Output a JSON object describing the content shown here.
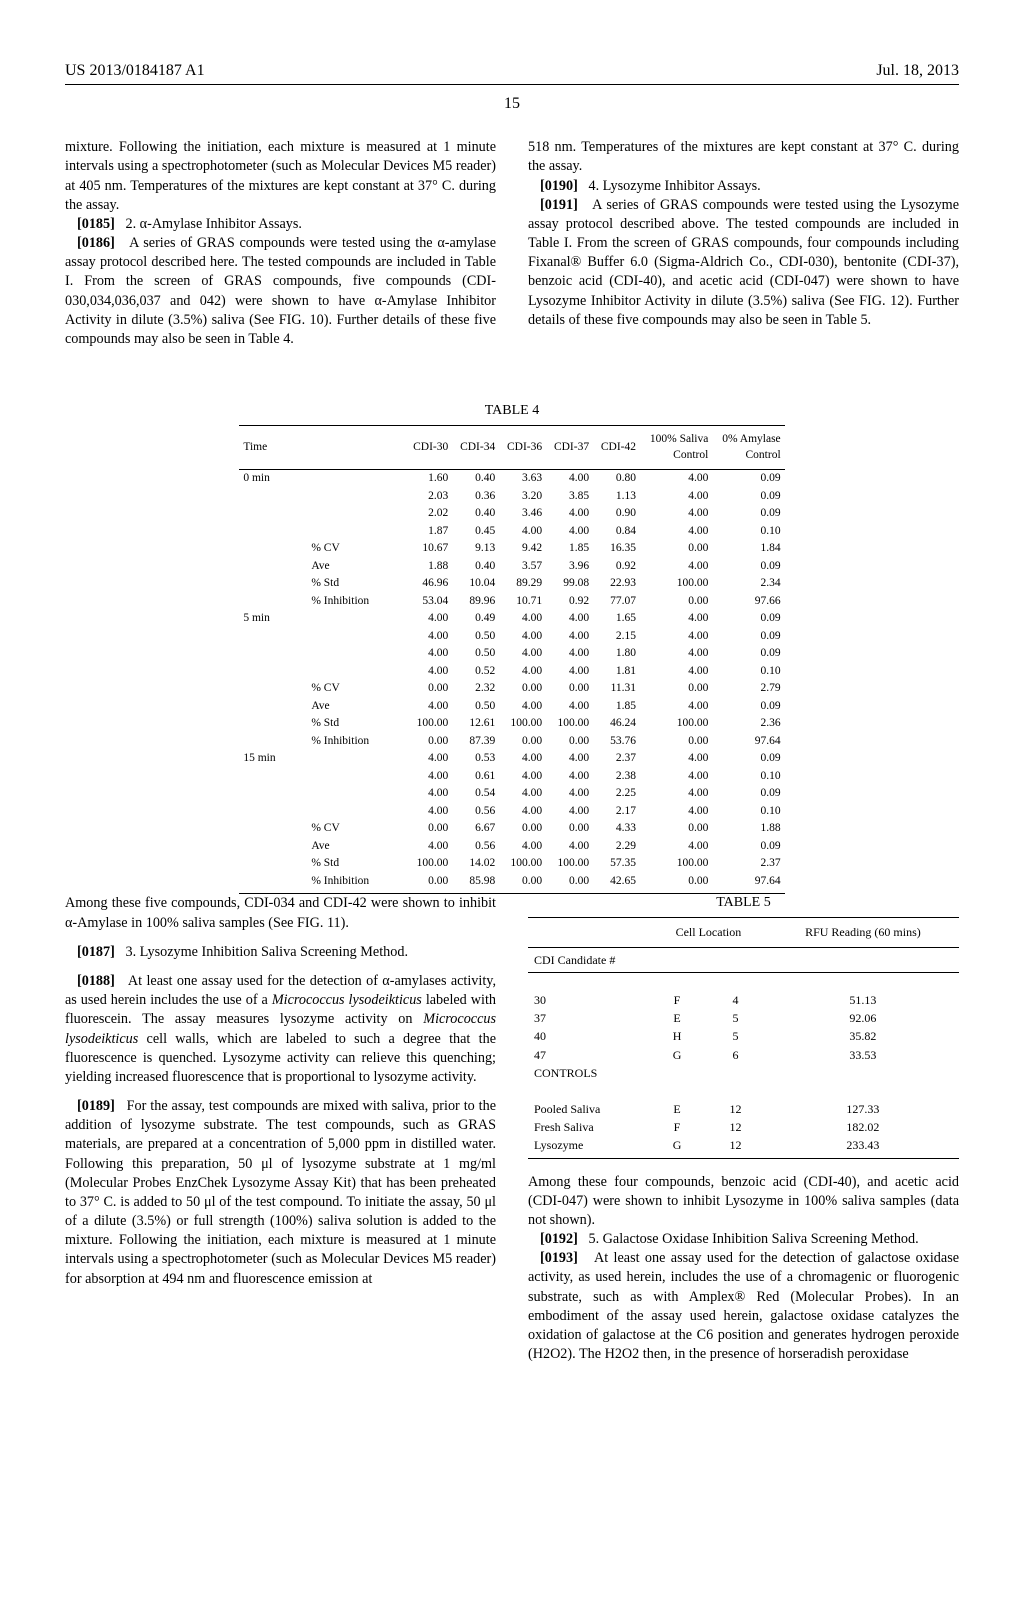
{
  "header": {
    "pub_id": "US 2013/0184187 A1",
    "date": "Jul. 18, 2013",
    "page_number": "15"
  },
  "top_left": {
    "p1": "mixture. Following the initiation, each mixture is measured at 1 minute intervals using a spectrophotometer (such as Molecular Devices M5 reader) at 405 nm. Temperatures of the mixtures are kept constant at 37° C. during the assay.",
    "p2_num": "[0185]",
    "p2": "2. α-Amylase Inhibitor Assays.",
    "p3_num": "[0186]",
    "p3": "A series of GRAS compounds were tested using the α-amylase assay protocol described here. The tested compounds are included in Table I. From the screen of GRAS compounds, five compounds (CDI-030,034,036,037 and 042) were shown to have α-Amylase Inhibitor Activity in dilute (3.5%) saliva (See FIG. 10). Further details of these five compounds may also be seen in Table 4."
  },
  "top_right": {
    "p1": "518 nm. Temperatures of the mixtures are kept constant at 37° C. during the assay.",
    "p2_num": "[0190]",
    "p2": "4. Lysozyme Inhibitor Assays.",
    "p3_num": "[0191]",
    "p3": "A series of GRAS compounds were tested using the Lysozyme assay protocol described above. The tested compounds are included in Table I. From the screen of GRAS compounds, four compounds including Fixanal® Buffer 6.0 (Sigma-Aldrich Co., CDI-030), bentonite (CDI-37), benzoic acid (CDI-40), and acetic acid (CDI-047) were shown to have Lysozyme Inhibitor Activity in dilute (3.5%) saliva (See FIG. 12). Further details of these five compounds may also be seen in Table 5."
  },
  "table4": {
    "title": "TABLE 4",
    "columns": [
      "Time",
      "",
      "CDI-30",
      "CDI-34",
      "CDI-36",
      "CDI-37",
      "CDI-42",
      "100% Saliva Control",
      "0% Amylase Control"
    ],
    "rows": [
      [
        "0 min",
        "",
        "1.60",
        "0.40",
        "3.63",
        "4.00",
        "0.80",
        "4.00",
        "0.09"
      ],
      [
        "",
        "",
        "2.03",
        "0.36",
        "3.20",
        "3.85",
        "1.13",
        "4.00",
        "0.09"
      ],
      [
        "",
        "",
        "2.02",
        "0.40",
        "3.46",
        "4.00",
        "0.90",
        "4.00",
        "0.09"
      ],
      [
        "",
        "",
        "1.87",
        "0.45",
        "4.00",
        "4.00",
        "0.84",
        "4.00",
        "0.10"
      ],
      [
        "",
        "% CV",
        "10.67",
        "9.13",
        "9.42",
        "1.85",
        "16.35",
        "0.00",
        "1.84"
      ],
      [
        "",
        "Ave",
        "1.88",
        "0.40",
        "3.57",
        "3.96",
        "0.92",
        "4.00",
        "0.09"
      ],
      [
        "",
        "% Std",
        "46.96",
        "10.04",
        "89.29",
        "99.08",
        "22.93",
        "100.00",
        "2.34"
      ],
      [
        "",
        "% Inhibition",
        "53.04",
        "89.96",
        "10.71",
        "0.92",
        "77.07",
        "0.00",
        "97.66"
      ],
      [
        "5 min",
        "",
        "4.00",
        "0.49",
        "4.00",
        "4.00",
        "1.65",
        "4.00",
        "0.09"
      ],
      [
        "",
        "",
        "4.00",
        "0.50",
        "4.00",
        "4.00",
        "2.15",
        "4.00",
        "0.09"
      ],
      [
        "",
        "",
        "4.00",
        "0.50",
        "4.00",
        "4.00",
        "1.80",
        "4.00",
        "0.09"
      ],
      [
        "",
        "",
        "4.00",
        "0.52",
        "4.00",
        "4.00",
        "1.81",
        "4.00",
        "0.10"
      ],
      [
        "",
        "% CV",
        "0.00",
        "2.32",
        "0.00",
        "0.00",
        "11.31",
        "0.00",
        "2.79"
      ],
      [
        "",
        "Ave",
        "4.00",
        "0.50",
        "4.00",
        "4.00",
        "1.85",
        "4.00",
        "0.09"
      ],
      [
        "",
        "% Std",
        "100.00",
        "12.61",
        "100.00",
        "100.00",
        "46.24",
        "100.00",
        "2.36"
      ],
      [
        "",
        "% Inhibition",
        "0.00",
        "87.39",
        "0.00",
        "0.00",
        "53.76",
        "0.00",
        "97.64"
      ],
      [
        "15 min",
        "",
        "4.00",
        "0.53",
        "4.00",
        "4.00",
        "2.37",
        "4.00",
        "0.09"
      ],
      [
        "",
        "",
        "4.00",
        "0.61",
        "4.00",
        "4.00",
        "2.38",
        "4.00",
        "0.10"
      ],
      [
        "",
        "",
        "4.00",
        "0.54",
        "4.00",
        "4.00",
        "2.25",
        "4.00",
        "0.09"
      ],
      [
        "",
        "",
        "4.00",
        "0.56",
        "4.00",
        "4.00",
        "2.17",
        "4.00",
        "0.10"
      ],
      [
        "",
        "% CV",
        "0.00",
        "6.67",
        "0.00",
        "0.00",
        "4.33",
        "0.00",
        "1.88"
      ],
      [
        "",
        "Ave",
        "4.00",
        "0.56",
        "4.00",
        "4.00",
        "2.29",
        "4.00",
        "0.09"
      ],
      [
        "",
        "% Std",
        "100.00",
        "14.02",
        "100.00",
        "100.00",
        "57.35",
        "100.00",
        "2.37"
      ],
      [
        "",
        "% Inhibition",
        "0.00",
        "85.98",
        "0.00",
        "0.00",
        "42.65",
        "0.00",
        "97.64"
      ]
    ]
  },
  "bottom_left": {
    "p1": "Among these five compounds, CDI-034 and CDI-42 were shown to inhibit α-Amylase in 100% saliva samples (See FIG. 11).",
    "p2_num": "[0187]",
    "p2": "3. Lysozyme Inhibition Saliva Screening Method.",
    "p3_num": "[0188]",
    "p3a": "At least one assay used for the detection of α-amylases activity, as used herein includes the use of a ",
    "p3_em1": "Micrococcus lysodeikticus",
    "p3b": " labeled with fluorescein. The assay measures lysozyme activity on ",
    "p3_em2": "Micrococcus lysodeikticus",
    "p3c": " cell walls, which are labeled to such a degree that the fluorescence is quenched. Lysozyme activity can relieve this quenching; yielding increased fluorescence that is proportional to lysozyme activity.",
    "p4_num": "[0189]",
    "p4": "For the assay, test compounds are mixed with saliva, prior to the addition of lysozyme substrate. The test compounds, such as GRAS materials, are prepared at a concentration of 5,000 ppm in distilled water. Following this preparation, 50 μl of lysozyme substrate at 1 mg/ml (Molecular Probes EnzChek Lysozyme Assay Kit) that has been preheated to 37° C. is added to 50 μl of the test compound. To initiate the assay, 50 μl of a dilute (3.5%) or full strength (100%) saliva solution is added to the mixture. Following the initiation, each mixture is measured at 1 minute intervals using a spectrophotometer (such as Molecular Devices M5 reader) for absorption at 494 nm and fluorescence emission at"
  },
  "table5": {
    "title": "TABLE 5",
    "head_cell": "Cell Location",
    "head_rfu": "RFU Reading (60 mins)",
    "sub_head": "CDI Candidate #",
    "rows_a": [
      [
        "30",
        "F",
        "4",
        "51.13"
      ],
      [
        "37",
        "E",
        "5",
        "92.06"
      ],
      [
        "40",
        "H",
        "5",
        "35.82"
      ],
      [
        "47",
        "G",
        "6",
        "33.53"
      ]
    ],
    "controls_label": "CONTROLS",
    "rows_b": [
      [
        "Pooled Saliva",
        "E",
        "12",
        "127.33"
      ],
      [
        "Fresh Saliva",
        "F",
        "12",
        "182.02"
      ],
      [
        "Lysozyme",
        "G",
        "12",
        "233.43"
      ]
    ]
  },
  "bottom_right": {
    "p1": "Among these four compounds, benzoic acid (CDI-40), and acetic acid (CDI-047) were shown to inhibit Lysozyme in 100% saliva samples (data not shown).",
    "p2_num": "[0192]",
    "p2": "5. Galactose Oxidase Inhibition Saliva Screening Method.",
    "p3_num": "[0193]",
    "p3": "At least one assay used for the detection of galactose oxidase activity, as used herein, includes the use of a chromagenic or fluorogenic substrate, such as with Amplex® Red (Molecular Probes). In an embodiment of the assay used herein, galactose oxidase catalyzes the oxidation of galactose at the C6 position and generates hydrogen peroxide (H2O2). The H2O2 then, in the presence of horseradish peroxidase"
  }
}
